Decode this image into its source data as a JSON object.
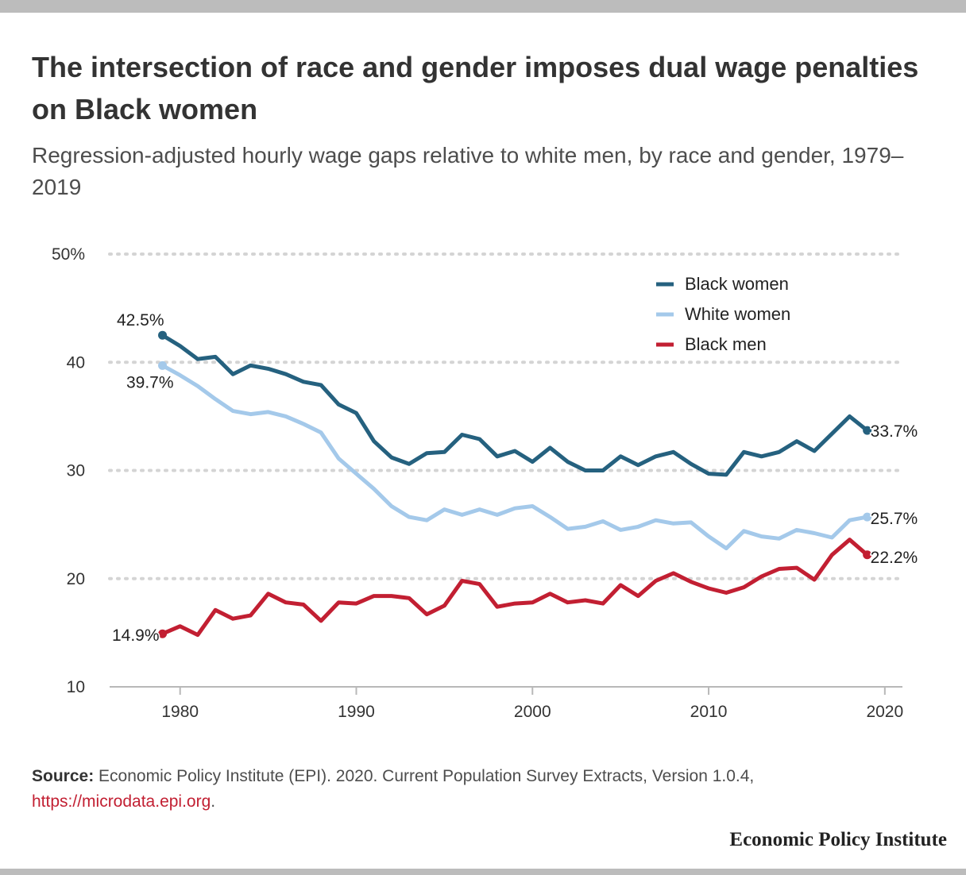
{
  "header": {
    "title": "The intersection of race and gender imposes dual wage penalties on Black women",
    "subtitle": "Regression-adjusted hourly wage gaps relative to white men, by race and gender, 1979–2019"
  },
  "footer": {
    "source_label": "Source:",
    "source_text": "Economic Policy Institute (EPI). 2020. Current Population Survey Extracts, Version 1.0.4,",
    "source_link": "https://microdata.epi.org",
    "source_end": ".",
    "brand": "Economic Policy Institute"
  },
  "chart_data": {
    "type": "line",
    "title": "The intersection of race and gender imposes dual wage penalties on Black women",
    "subtitle": "Regression-adjusted hourly wage gaps relative to white men, by race and gender, 1979–2019",
    "xlim": [
      1976,
      2021
    ],
    "ylim": [
      10,
      50
    ],
    "x_ticks": [
      1980,
      1990,
      2000,
      2010,
      2020
    ],
    "x_tick_labels": [
      "1980",
      "1990",
      "2000",
      "2010",
      "2020"
    ],
    "y_ticks": [
      10,
      20,
      30,
      40,
      50
    ],
    "y_tick_labels": [
      "10",
      "20",
      "30",
      "40",
      "50%"
    ],
    "grid": "horizontal dotted",
    "legend_position": "top-right",
    "x": [
      1979,
      1980,
      1981,
      1982,
      1983,
      1984,
      1985,
      1986,
      1987,
      1988,
      1989,
      1990,
      1991,
      1992,
      1993,
      1994,
      1995,
      1996,
      1997,
      1998,
      1999,
      2000,
      2001,
      2002,
      2003,
      2004,
      2005,
      2006,
      2007,
      2008,
      2009,
      2010,
      2011,
      2012,
      2013,
      2014,
      2015,
      2016,
      2017,
      2018,
      2019
    ],
    "series": [
      {
        "name": "Black women",
        "color": "#25617f",
        "values": [
          42.5,
          41.5,
          40.3,
          40.5,
          38.9,
          39.7,
          39.4,
          38.9,
          38.2,
          37.9,
          36.1,
          35.3,
          32.7,
          31.2,
          30.6,
          31.6,
          31.7,
          33.3,
          32.9,
          31.3,
          31.8,
          30.8,
          32.1,
          30.8,
          30.0,
          30.0,
          31.3,
          30.5,
          31.3,
          31.7,
          30.6,
          29.7,
          29.6,
          31.7,
          31.3,
          31.7,
          32.7,
          31.8,
          33.4,
          35.0,
          33.7
        ],
        "end_label_year": 1979,
        "start_label": "42.5%",
        "end_label": "33.7%"
      },
      {
        "name": "White women",
        "color": "#a4c9ea",
        "values": [
          39.7,
          38.8,
          37.8,
          36.6,
          35.5,
          35.2,
          35.4,
          35.0,
          34.3,
          33.5,
          31.1,
          29.7,
          28.3,
          26.7,
          25.7,
          25.4,
          26.4,
          25.9,
          26.4,
          25.9,
          26.5,
          26.7,
          25.7,
          24.6,
          24.8,
          25.3,
          24.5,
          24.8,
          25.4,
          25.1,
          25.2,
          23.9,
          22.8,
          24.4,
          23.9,
          23.7,
          24.5,
          24.2,
          23.8,
          25.4,
          25.7
        ],
        "start_label": "39.7%",
        "end_label": "25.7%"
      },
      {
        "name": "Black men",
        "color": "#c21f32",
        "values": [
          14.9,
          15.6,
          14.8,
          17.1,
          16.3,
          16.6,
          18.6,
          17.8,
          17.6,
          16.1,
          17.8,
          17.7,
          18.4,
          18.4,
          18.2,
          16.7,
          17.5,
          19.8,
          19.5,
          17.4,
          17.7,
          17.8,
          18.6,
          17.8,
          18.0,
          17.7,
          19.4,
          18.4,
          19.8,
          20.5,
          19.7,
          19.1,
          18.7,
          19.2,
          20.2,
          20.9,
          21.0,
          19.9,
          22.2,
          23.6,
          22.2
        ],
        "start_label": "14.9%",
        "end_label": "22.2%"
      }
    ]
  }
}
